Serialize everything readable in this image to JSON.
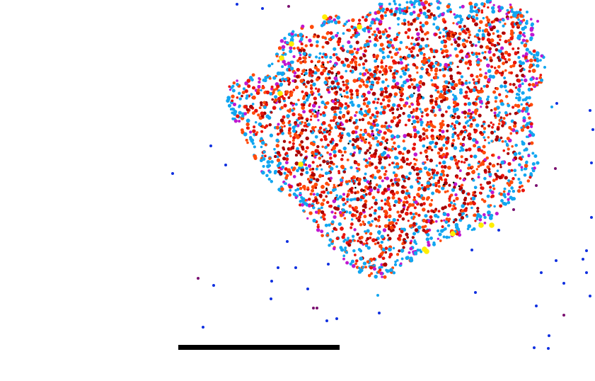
{
  "image": {
    "description_colors": {
      "background": "#ffffff",
      "dark_red": "#a80000",
      "red": "#e8140c",
      "orange_red": "#ff4a0a",
      "sky_blue": "#12a6f0",
      "magenta": "#c018d0",
      "purple": "#7a1070",
      "blue": "#1030e0",
      "yellow": "#ffee00",
      "black": "#000000"
    },
    "scale_bar_color": "#000000"
  }
}
